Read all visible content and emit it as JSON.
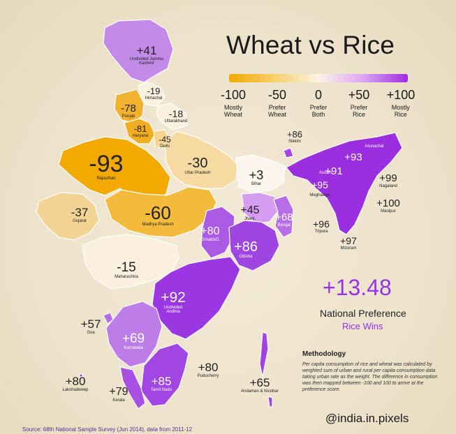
{
  "title": "Wheat vs Rice",
  "legend": {
    "stops": [
      {
        "value": "-100",
        "desc": "Mostly Wheat"
      },
      {
        "value": "-50",
        "desc": "Prefer Wheat"
      },
      {
        "value": "0",
        "desc": "Prefer Both"
      },
      {
        "value": "+50",
        "desc": "Prefer Rice"
      },
      {
        "value": "+100",
        "desc": "Mostly Rice"
      }
    ],
    "colors": {
      "wheat": "#f2a900",
      "neutral": "#fbf3e4",
      "rice": "#9a2be0"
    }
  },
  "regions": {
    "jk": {
      "name": "Undivided Jammu Kashmir",
      "value": "+41"
    },
    "hp": {
      "name": "Himachal",
      "value": "-19"
    },
    "pb": {
      "name": "Punjab",
      "value": "-78"
    },
    "uk": {
      "name": "Uttarakhand",
      "value": "-18"
    },
    "hr": {
      "name": "Haryana",
      "value": "-81"
    },
    "dl": {
      "name": "Delhi",
      "value": "-45"
    },
    "rj": {
      "name": "Rajasthan",
      "value": "-93"
    },
    "up": {
      "name": "Uttar Pradesh",
      "value": "-30"
    },
    "gj": {
      "name": "Gujarat",
      "value": "-37"
    },
    "mp": {
      "name": "Madhya Pradesh",
      "value": "-60"
    },
    "mh": {
      "name": "Maharashtra",
      "value": "-15"
    },
    "br": {
      "name": "Bihar",
      "value": "+3"
    },
    "jh": {
      "name": "Jhark.",
      "value": "+45"
    },
    "wb": {
      "name": "Bengal",
      "value": "+68"
    },
    "cg": {
      "name": "ChhattisG.",
      "value": "+80"
    },
    "od": {
      "name": "Odisha",
      "value": "+86"
    },
    "ap": {
      "name": "Undivided Andhra",
      "value": "+92"
    },
    "ga": {
      "name": "Goa",
      "value": "+57"
    },
    "ka": {
      "name": "Karnataka",
      "value": "+69"
    },
    "tn": {
      "name": "Tamil Nadu",
      "value": "+85"
    },
    "kl": {
      "name": "Kerala",
      "value": "+79"
    },
    "py": {
      "name": "Puducherry",
      "value": "+80"
    },
    "ld": {
      "name": "Lakshadweep",
      "value": "+80"
    },
    "an": {
      "name": "Andaman & Nicobar",
      "value": "+65"
    },
    "sk": {
      "name": "Sikkim",
      "value": "+86"
    },
    "arunachal": {
      "name": "Arunachal",
      "value": "+93"
    },
    "assam": {
      "name": "Assam",
      "value": "+91"
    },
    "meg": {
      "name": "Meghalaya",
      "value": "+95"
    },
    "nl": {
      "name": "Nagaland",
      "value": "+99"
    },
    "mn": {
      "name": "Manipur",
      "value": "+100"
    },
    "tr": {
      "name": "Tripura",
      "value": "+96"
    },
    "mz": {
      "name": "Mizoram",
      "value": "+97"
    }
  },
  "national": {
    "value": "+13.48",
    "label": "National Preference",
    "result": "Rice Wins"
  },
  "methodology": {
    "title": "Methodology",
    "text": "Per capita consumption of rice and wheat was calculated by weighted sum of urban and rural per capita consumption data taking urban rate as the weight. The difference in consumption was then mapped between -100 and 100 to arrive at the preference score."
  },
  "handle": "@india.in.pixels",
  "source": "Source: 68th National Sample Survey (Jun 2014), data from 2011-12"
}
